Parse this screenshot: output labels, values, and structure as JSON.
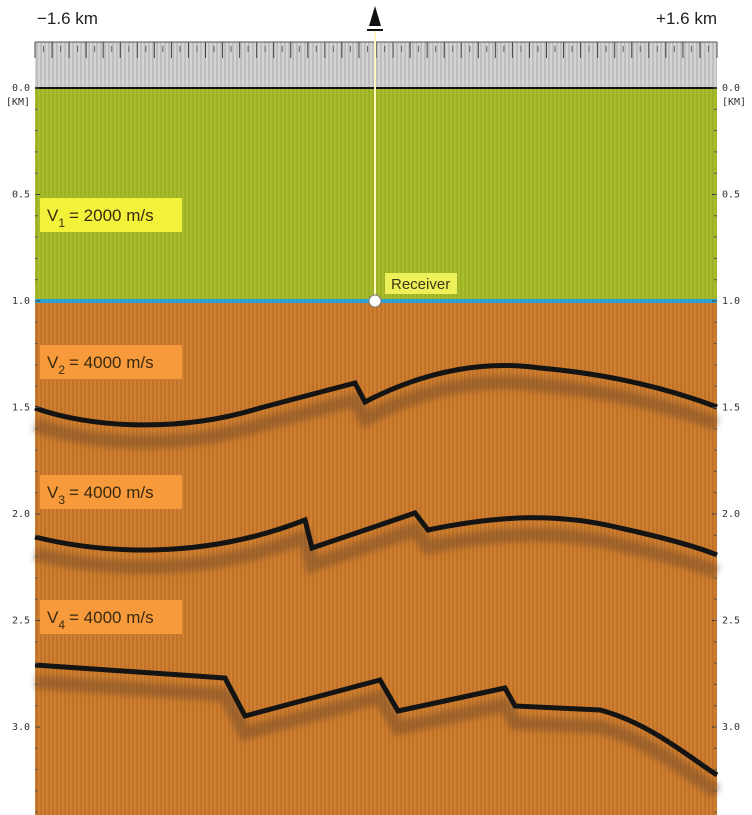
{
  "header": {
    "left": "−1.6 km",
    "right": "+1.6 km"
  },
  "depth_axis": {
    "unit": "[KM]",
    "ticks": [
      "0.0",
      "0.5",
      "1.0",
      "1.5",
      "2.0",
      "2.5",
      "3.0"
    ]
  },
  "layers": [
    {
      "symbol": "V",
      "subscript": "1",
      "speed": "= 2000 m/s"
    },
    {
      "symbol": "V",
      "subscript": "2",
      "speed": "= 4000 m/s"
    },
    {
      "symbol": "V",
      "subscript": "3",
      "speed": "= 4000 m/s"
    },
    {
      "symbol": "V",
      "subscript": "4",
      "speed": "= 4000 m/s"
    }
  ],
  "receiver": "Receiver"
}
